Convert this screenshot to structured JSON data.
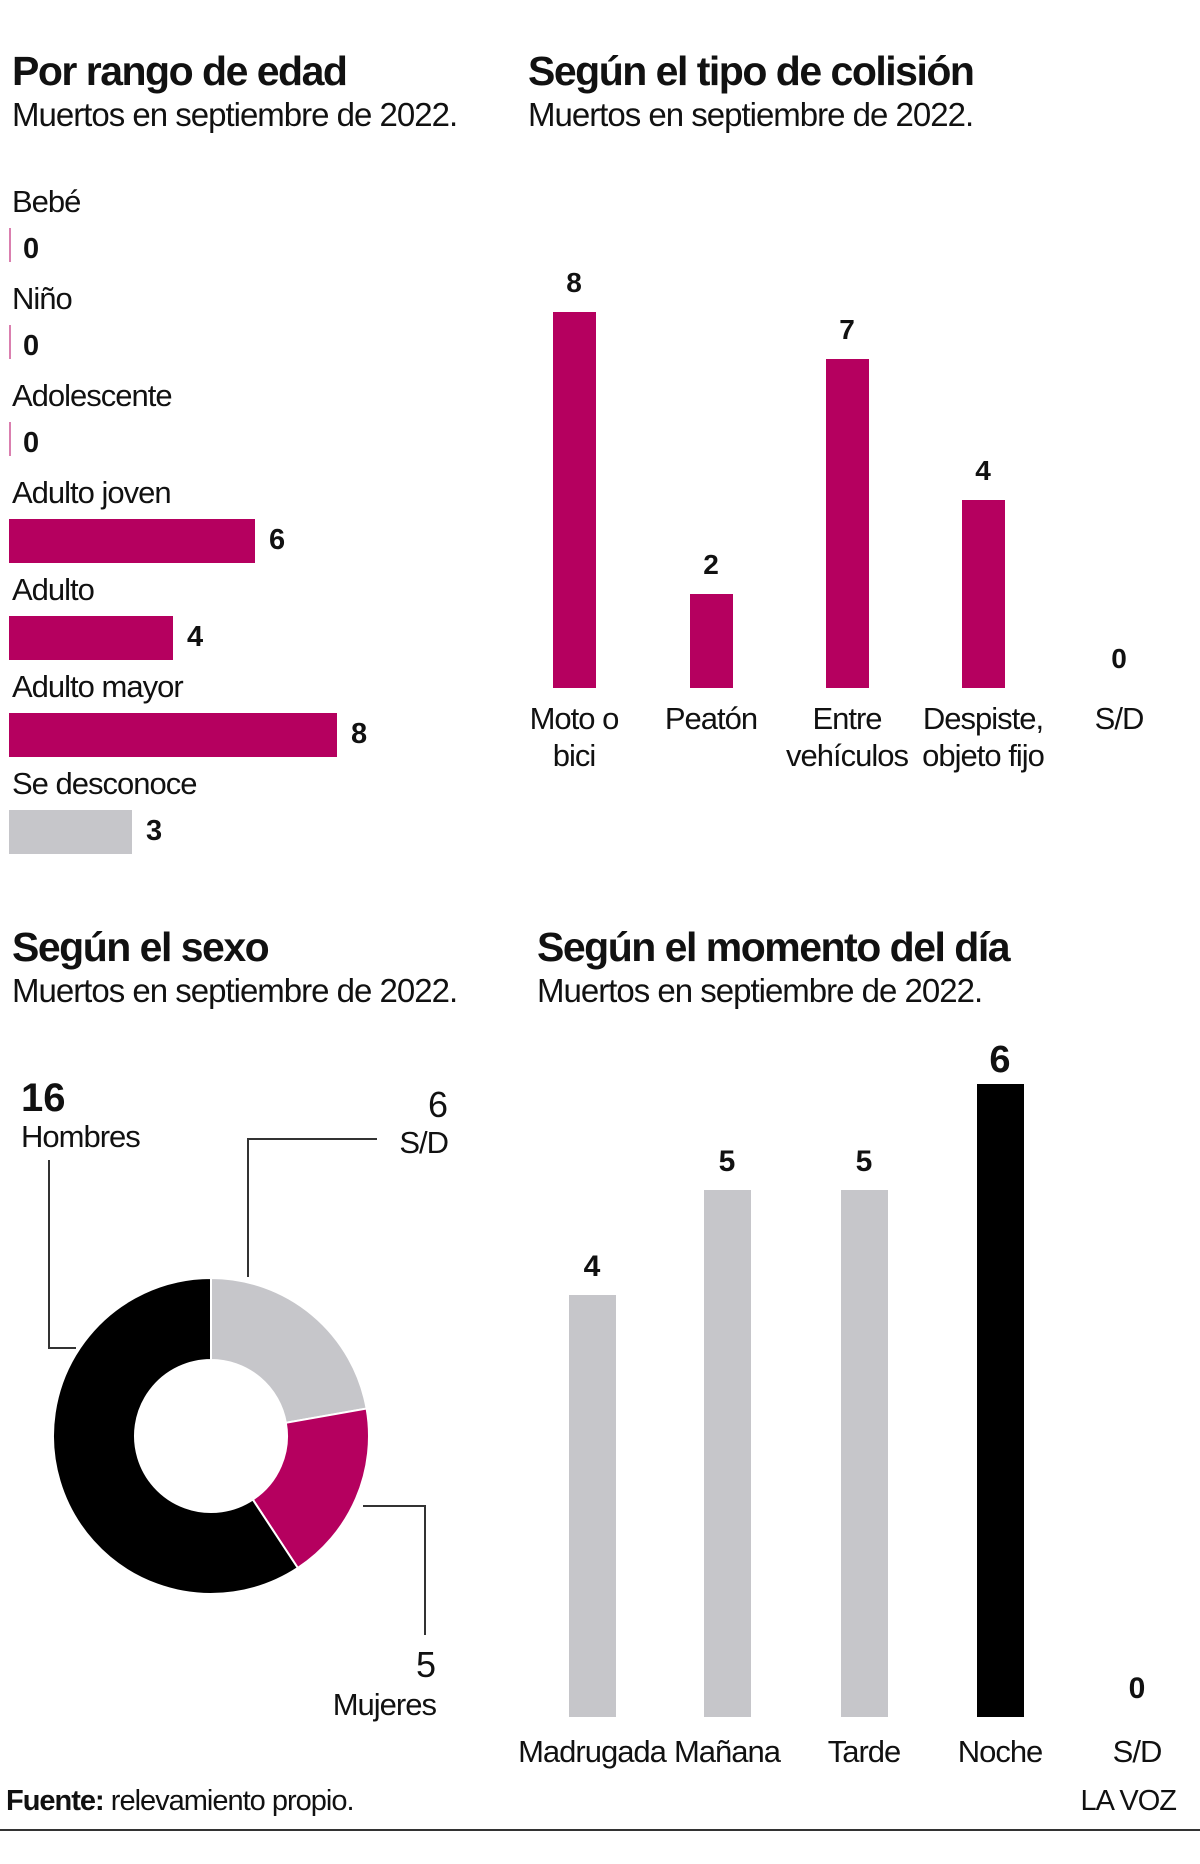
{
  "chart_data": [
    {
      "type": "hbar",
      "title": "Por rango de edad",
      "subtitle": "Muertos en septiembre de 2022.",
      "categories": [
        "Bebé",
        "Niño",
        "Adolescente",
        "Adulto joven",
        "Adulto",
        "Adulto mayor",
        "Se desconoce"
      ],
      "values": [
        0,
        0,
        0,
        6,
        4,
        8,
        3
      ],
      "colors": [
        "#b5005f",
        "#b5005f",
        "#b5005f",
        "#b5005f",
        "#b5005f",
        "#b5005f",
        "#c6c6ca"
      ]
    },
    {
      "type": "bar",
      "title": "Según el tipo de colisión",
      "subtitle": "Muertos en septiembre de 2022.",
      "categories": [
        "Moto o bici",
        "Peatón",
        "Entre vehículos",
        "Despiste, objeto fijo",
        "S/D"
      ],
      "values": [
        8,
        2,
        7,
        4,
        0
      ],
      "colors": [
        "#b5005f",
        "#b5005f",
        "#b5005f",
        "#b5005f",
        "#b5005f"
      ]
    },
    {
      "type": "donut",
      "title": "Según el sexo",
      "subtitle": "Muertos en septiembre de 2022.",
      "categories": [
        "S/D",
        "Mujeres",
        "Hombres"
      ],
      "values": [
        6,
        5,
        16
      ],
      "colors": [
        "#c6c6ca",
        "#b5005f",
        "#000000"
      ]
    },
    {
      "type": "bar",
      "title": "Según el momento del día",
      "subtitle": "Muertos en septiembre de 2022.",
      "categories": [
        "Madrugada",
        "Mañana",
        "Tarde",
        "Noche",
        "S/D"
      ],
      "values": [
        4,
        5,
        5,
        6,
        0
      ],
      "colors": [
        "#c6c6ca",
        "#c6c6ca",
        "#c6c6ca",
        "#000000",
        "#c6c6ca"
      ]
    }
  ],
  "footer": {
    "source_label": "Fuente:",
    "source_text": "relevamiento propio.",
    "brand": "LA VOZ"
  }
}
